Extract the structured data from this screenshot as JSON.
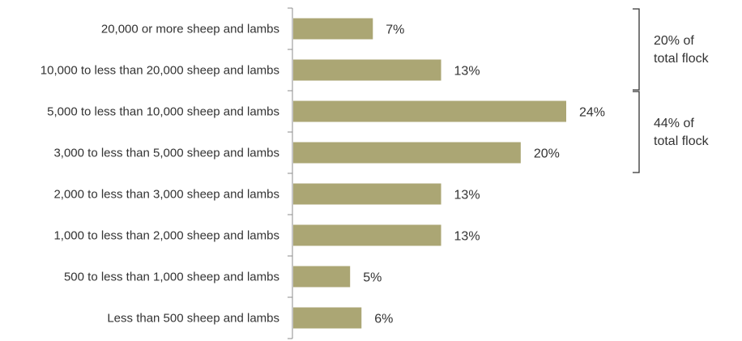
{
  "chart_data": {
    "type": "bar",
    "orientation": "horizontal",
    "categories": [
      "20,000 or more sheep and lambs",
      "10,000 to less than 20,000 sheep and lambs",
      "5,000 to less than 10,000 sheep and lambs",
      "3,000 to less than 5,000 sheep and lambs",
      "2,000 to less than 3,000 sheep and lambs",
      "1,000 to less than 2,000 sheep and lambs",
      "500 to less than 1,000 sheep and lambs",
      "Less than 500 sheep and lambs"
    ],
    "values": [
      7,
      13,
      24,
      20,
      13,
      13,
      5,
      6
    ],
    "value_labels": [
      "7%",
      "13%",
      "24%",
      "20%",
      "13%",
      "13%",
      "5%",
      "6%"
    ],
    "xlim": [
      0,
      30
    ],
    "grid": false,
    "bar_color": "#aba674",
    "annotations": [
      {
        "from_category": 0,
        "to_category": 1,
        "line1": "20% of",
        "line2": "total flock"
      },
      {
        "from_category": 2,
        "to_category": 3,
        "line1": "44% of",
        "line2": "total flock"
      }
    ]
  }
}
